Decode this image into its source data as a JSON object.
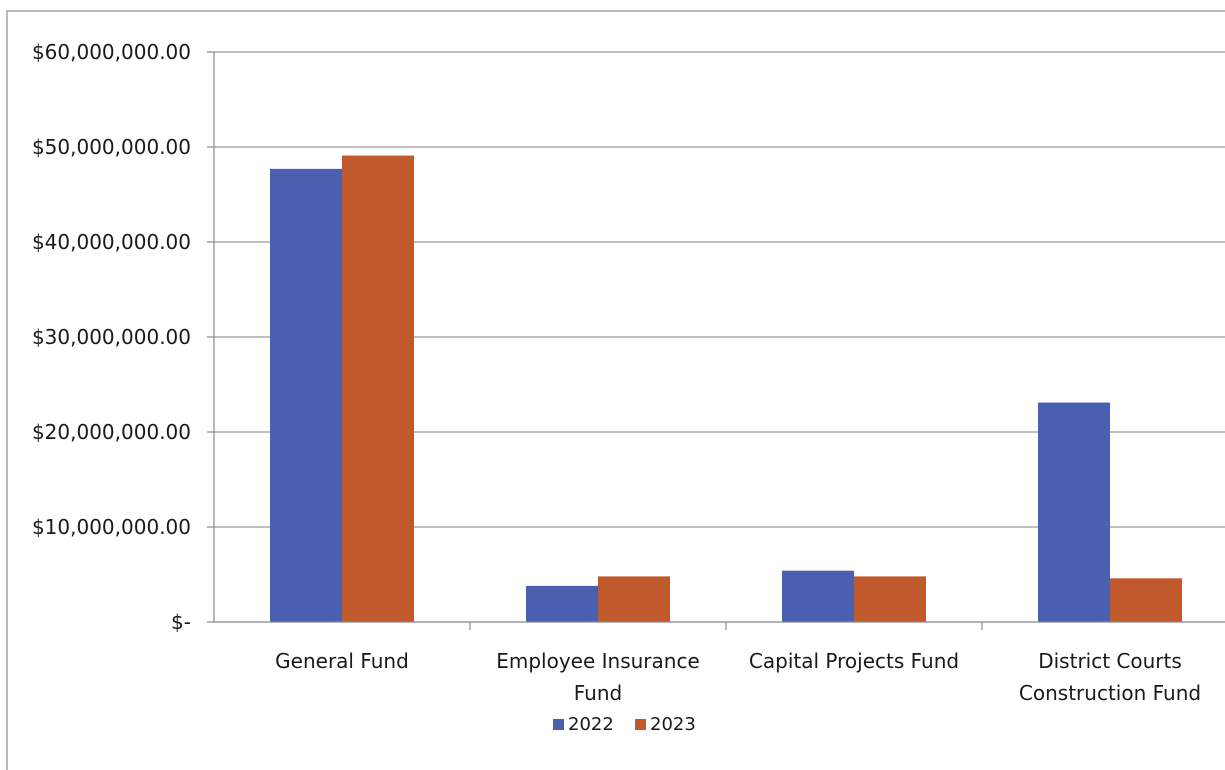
{
  "chart_data": {
    "type": "bar",
    "title": "",
    "xlabel": "",
    "ylabel": "",
    "categories": [
      [
        "General Fund"
      ],
      [
        "Employee Insurance",
        "Fund"
      ],
      [
        "Capital Projects Fund"
      ],
      [
        "District Courts",
        "Construction Fund"
      ]
    ],
    "series": [
      {
        "name": "2022",
        "color": "#4a5fb0",
        "values": [
          47700000,
          3800000,
          5400000,
          23100000
        ]
      },
      {
        "name": "2023",
        "color": "#c05a2c",
        "values": [
          49100000,
          4800000,
          4800000,
          4600000
        ]
      }
    ],
    "ylim": [
      0,
      60000000
    ],
    "yticks": [
      0,
      10000000,
      20000000,
      30000000,
      40000000,
      50000000,
      60000000
    ],
    "ytick_labels": [
      "$-",
      "$10,000,000.00",
      "$20,000,000.00",
      "$30,000,000.00",
      "$40,000,000.00",
      "$50,000,000.00",
      "$60,000,000.00"
    ],
    "grid": true,
    "legend_position": "bottom-center"
  }
}
